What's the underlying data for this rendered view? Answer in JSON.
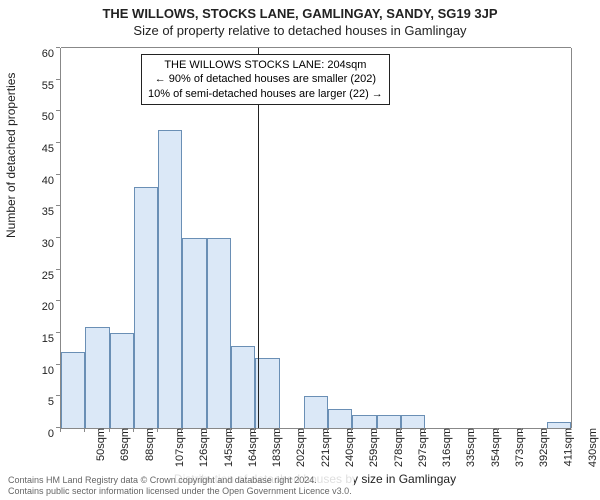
{
  "header": {
    "title": "THE WILLOWS, STOCKS LANE, GAMLINGAY, SANDY, SG19 3JP",
    "subtitle": "Size of property relative to detached houses in Gamlingay"
  },
  "chart": {
    "type": "histogram",
    "ylabel": "Number of detached properties",
    "xlabel": "Distribution of detached houses by size in Gamlingay",
    "ylim": [
      0,
      60
    ],
    "ytick_step": 5,
    "x_categories": [
      "50sqm",
      "69sqm",
      "88sqm",
      "107sqm",
      "126sqm",
      "145sqm",
      "164sqm",
      "183sqm",
      "202sqm",
      "221sqm",
      "240sqm",
      "259sqm",
      "278sqm",
      "297sqm",
      "316sqm",
      "335sqm",
      "354sqm",
      "373sqm",
      "392sqm",
      "411sqm",
      "430sqm"
    ],
    "values": [
      12,
      16,
      15,
      38,
      47,
      30,
      30,
      13,
      11,
      0,
      5,
      3,
      2,
      2,
      2,
      0,
      0,
      0,
      0,
      0,
      1
    ],
    "bar_fill": "#dbe8f7",
    "bar_stroke": "#6a8fb5",
    "background_color": "#ffffff",
    "axis_color": "#888888",
    "text_color": "#222222",
    "title_fontsize": 13,
    "label_fontsize": 12,
    "tick_fontsize": 11,
    "bar_width_ratio": 1.0,
    "marker_x_value": 204,
    "x_range": [
      50,
      449
    ]
  },
  "annotation": {
    "line1": "THE WILLOWS STOCKS LANE: 204sqm",
    "line2": "← 90% of detached houses are smaller (202)",
    "line3": "10% of semi-detached houses are larger (22) →"
  },
  "footer": {
    "line1": "Contains HM Land Registry data © Crown copyright and database right 2024.",
    "line2": "Contains public sector information licensed under the Open Government Licence v3.0."
  }
}
